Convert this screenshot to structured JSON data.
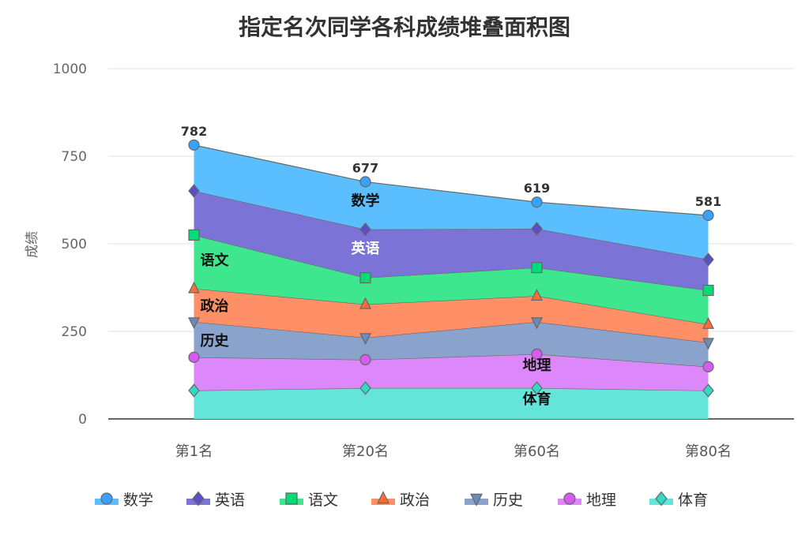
{
  "chart_data": {
    "type": "area",
    "stacked": true,
    "title": "指定名次同学各科成绩堆叠面积图",
    "xlabel": "",
    "ylabel": "成绩",
    "ylim": [
      0,
      1000
    ],
    "yticks": [
      0,
      250,
      500,
      750,
      1000
    ],
    "grid": true,
    "legend": "bottom",
    "categories": [
      "第1名",
      "第20名",
      "第60名",
      "第80名"
    ],
    "series": [
      {
        "name": "体育",
        "values": [
          81,
          88,
          88,
          81
        ],
        "color": "#33D9C4",
        "area": "#63E6D9",
        "marker": "diamond"
      },
      {
        "name": "地理",
        "values": [
          95,
          81,
          97,
          68
        ],
        "color": "#D65BF0",
        "area": "#DD88FA",
        "marker": "circle"
      },
      {
        "name": "历史",
        "values": [
          101,
          63,
          92,
          69
        ],
        "color": "#6E8BB8",
        "area": "#8AA3CC",
        "marker": "triangle-down"
      },
      {
        "name": "政治",
        "values": [
          95,
          95,
          74,
          52
        ],
        "color": "#FF6B3B",
        "area": "#FF8F66",
        "marker": "triangle"
      },
      {
        "name": "语文",
        "values": [
          153,
          76,
          81,
          97
        ],
        "color": "#00DD77",
        "area": "#3EE68E",
        "marker": "square"
      },
      {
        "name": "英语",
        "values": [
          126,
          138,
          111,
          88
        ],
        "color": "#5A4FC8",
        "area": "#7B74D6",
        "marker": "diamond"
      },
      {
        "name": "数学",
        "values": [
          131,
          136,
          76,
          126
        ],
        "color": "#37A2FF",
        "area": "#5BBFFF",
        "marker": "circle"
      }
    ],
    "totals": [
      782,
      677,
      619,
      581
    ],
    "legend_order": [
      "数学",
      "英语",
      "语文",
      "政治",
      "历史",
      "地理",
      "体育"
    ]
  }
}
